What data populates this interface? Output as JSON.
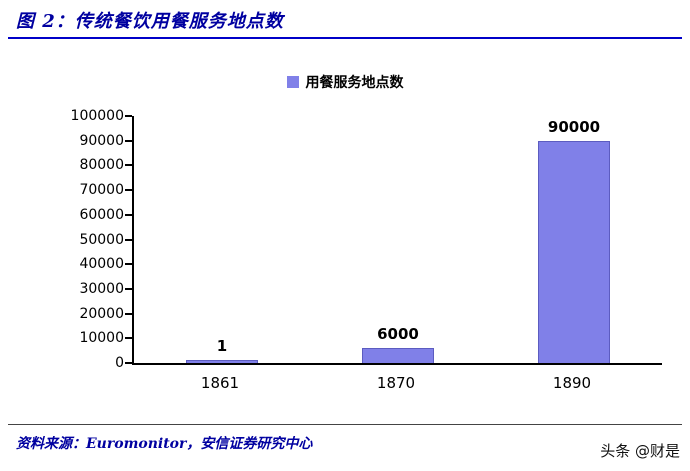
{
  "header": {
    "title": "图 2：传统餐饮用餐服务地点数"
  },
  "chart_data": {
    "type": "bar",
    "title": "传统餐饮用餐服务地点数",
    "categories": [
      "1861",
      "1870",
      "1890"
    ],
    "values": [
      1,
      6000,
      90000
    ],
    "data_labels": [
      "1",
      "6000",
      "90000"
    ],
    "legend": {
      "label": "用餐服务地点数",
      "position": "top-center"
    },
    "xlabel": "",
    "ylabel": "",
    "ylim": [
      0,
      100000
    ],
    "ytick_interval": 10000,
    "grid": false,
    "bar_color": "#8080e8",
    "bar_border_color": "#5c5cc0"
  },
  "footer": {
    "source": "资料来源：Euromonitor，安信证券研究中心",
    "watermark": "头条 @财是"
  },
  "colors": {
    "title_text": "#0000a0",
    "header_rule": "#0000c8",
    "axis": "#000000"
  }
}
